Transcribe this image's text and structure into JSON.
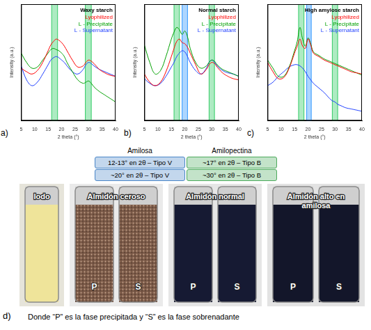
{
  "chart_data": [
    {
      "type": "line",
      "panel_label": "a)",
      "title": "Waxy starch",
      "x_label": "2 theta (°)",
      "y_label": "Intensity (a.u.)",
      "x": [
        5,
        7,
        9,
        11,
        13,
        15,
        16,
        17,
        18,
        19,
        20,
        21,
        22,
        24,
        26,
        28,
        29,
        30,
        31,
        32,
        34,
        36,
        38,
        40
      ],
      "series": [
        {
          "name": "Lyophilized",
          "color": "#ff0000",
          "values": [
            45,
            42,
            40,
            43,
            50,
            60,
            65,
            68,
            70,
            69,
            67,
            64,
            60,
            52,
            46,
            47,
            50,
            52,
            51,
            49,
            44,
            41,
            39,
            38
          ]
        },
        {
          "name": "L - Precipitate",
          "color": "#00a000",
          "values": [
            58,
            50,
            45,
            46,
            52,
            58,
            61,
            62,
            61,
            60,
            58,
            55,
            50,
            42,
            35,
            32,
            33,
            34,
            32,
            29,
            25,
            22,
            19,
            16
          ]
        },
        {
          "name": "L - Supernatant",
          "color": "#1f3fff",
          "values": [
            47,
            35,
            30,
            33,
            40,
            48,
            52,
            54,
            55,
            54,
            52,
            50,
            47,
            42,
            40,
            44,
            48,
            50,
            49,
            47,
            44,
            42,
            40,
            38
          ]
        }
      ],
      "bands": [
        {
          "from": 16.3,
          "to": 18.5,
          "color": "#33cc66"
        },
        {
          "from": 28.8,
          "to": 31,
          "color": "#33cc66"
        }
      ],
      "xlim": [
        5,
        40
      ],
      "xticks": [
        5,
        10,
        15,
        20,
        25,
        30,
        35,
        40
      ],
      "ylim": [
        0,
        100
      ],
      "tick_labels": "x",
      "grid": false,
      "legend": "upper right"
    },
    {
      "type": "line",
      "panel_label": "b)",
      "title": "Normal starch",
      "x_label": "2 theta (°)",
      "y_label": "Intensity (a.u.)",
      "x": [
        5,
        7,
        9,
        11,
        13,
        15,
        16,
        17,
        18,
        19,
        20,
        21,
        22,
        24,
        26,
        28,
        29,
        30,
        31,
        32,
        34,
        36,
        38,
        40
      ],
      "series": [
        {
          "name": "Lyophilized",
          "color": "#ff0000",
          "values": [
            40,
            33,
            30,
            33,
            42,
            55,
            62,
            68,
            70,
            67,
            66,
            63,
            58,
            48,
            40,
            44,
            48,
            50,
            49,
            46,
            41,
            38,
            36,
            35
          ]
        },
        {
          "name": "L - Precipitate",
          "color": "#00a000",
          "values": [
            65,
            50,
            40,
            43,
            55,
            70,
            76,
            80,
            78,
            74,
            77,
            72,
            62,
            50,
            45,
            47,
            50,
            52,
            51,
            48,
            44,
            42,
            40,
            38
          ]
        },
        {
          "name": "L - Supernatant",
          "color": "#1f3fff",
          "values": [
            36,
            32,
            30,
            32,
            38,
            46,
            50,
            55,
            58,
            60,
            59,
            55,
            50,
            43,
            40,
            45,
            50,
            52,
            50,
            47,
            43,
            41,
            40,
            38
          ]
        }
      ],
      "bands": [
        {
          "from": 16,
          "to": 18,
          "color": "#33cc66"
        },
        {
          "from": 19,
          "to": 21,
          "color": "#3399ff"
        },
        {
          "from": 29,
          "to": 31,
          "color": "#33cc66"
        }
      ],
      "xlim": [
        5,
        40
      ],
      "xticks": [
        5,
        10,
        15,
        20,
        25,
        30,
        35,
        40
      ],
      "ylim": [
        0,
        100
      ],
      "tick_labels": "x",
      "grid": false,
      "legend": "upper right"
    },
    {
      "type": "line",
      "panel_label": "c)",
      "title": "High amylose starch",
      "x_label": "2 theta (°)",
      "y_label": "Intensity (a.u.)",
      "x": [
        5,
        7,
        9,
        11,
        13,
        15,
        16,
        17,
        18,
        19,
        20,
        21,
        22,
        24,
        26,
        28,
        29,
        30,
        31,
        32,
        34,
        36,
        38,
        40
      ],
      "series": [
        {
          "name": "Lyophilized",
          "color": "#ff0000",
          "values": [
            50,
            42,
            36,
            37,
            45,
            58,
            64,
            70,
            64,
            62,
            70,
            65,
            58,
            55,
            52,
            50,
            49,
            48,
            47,
            46,
            44,
            42,
            41,
            40
          ]
        },
        {
          "name": "L - Precipitate",
          "color": "#00a000",
          "values": [
            52,
            45,
            38,
            38,
            46,
            60,
            68,
            80,
            70,
            64,
            71,
            66,
            59,
            56,
            53,
            51,
            50,
            49,
            48,
            47,
            45,
            43,
            41,
            39
          ]
        },
        {
          "name": "L - Supernatant",
          "color": "#1f3fff",
          "values": [
            30,
            33,
            38,
            42,
            46,
            48,
            48,
            47,
            45,
            42,
            38,
            35,
            32,
            28,
            24,
            19,
            17,
            16,
            14,
            13,
            11,
            10,
            9,
            8
          ]
        }
      ],
      "bands": [
        {
          "from": 16.5,
          "to": 18.5,
          "color": "#33cc66"
        },
        {
          "from": 19.5,
          "to": 21.2,
          "color": "#3399ff"
        },
        {
          "from": 29,
          "to": 31,
          "color": "#33cc66"
        }
      ],
      "xlim": [
        5,
        40
      ],
      "xticks": [
        5,
        10,
        15,
        20,
        25,
        30,
        35,
        40
      ],
      "ylim": [
        0,
        100
      ],
      "tick_labels": "x",
      "grid": false,
      "legend": "upper right"
    }
  ],
  "peak_table": {
    "columns": [
      {
        "header": "Amilosa",
        "color": "#4a86c8",
        "cells": [
          "12-13° en 2θ – Tipo V",
          "~20° en 2θ – Tipo V"
        ]
      },
      {
        "header": "Amilopectina",
        "color": "#4caa5c",
        "cells": [
          "~17° en 2θ – Tipo B",
          "~30° en 2θ – Tipo B"
        ]
      }
    ]
  },
  "photo_panel": {
    "panel_label": "d)",
    "groups": [
      {
        "label": "Iodo",
        "tubes": []
      },
      {
        "label": "Almidón ceroso",
        "tubes": [
          "P",
          "S"
        ]
      },
      {
        "label": "Almidón normal",
        "tubes": [
          "P",
          "S"
        ]
      },
      {
        "label": "Almidón alto en amilosa",
        "tubes": [
          "P",
          "S"
        ]
      }
    ],
    "caption": "Donde “P” es la fase precipitada y “S” es la fase sobrenadante"
  }
}
